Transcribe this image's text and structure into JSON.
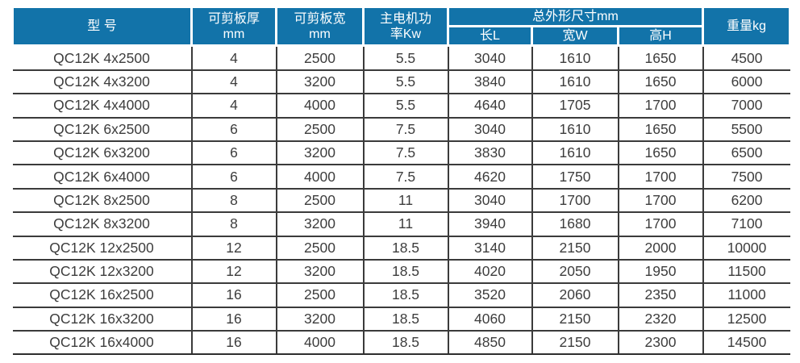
{
  "colors": {
    "header_background": "#1273a9",
    "header_text": "#ffffff",
    "body_text": "#3d3d3d",
    "grid_line": "#3b3b3b",
    "page_background": "#ffffff"
  },
  "chart_data": {
    "type": "table",
    "title": "",
    "legend": "none",
    "grid": "on",
    "header": {
      "model": "型 号",
      "cut_thickness_line1": "可剪板厚",
      "cut_thickness_line2": "mm",
      "cut_width_line1": "可剪板宽",
      "cut_width_line2": "mm",
      "motor_power_line1": "主电机功",
      "motor_power_line2": "率Kw",
      "dims_group": "总外形尺寸mm",
      "dim_length": "长L",
      "dim_width": "宽W",
      "dim_height": "高H",
      "weight": "重量kg"
    },
    "columns": [
      "型 号",
      "可剪板厚 mm",
      "可剪板宽 mm",
      "主电机功率Kw",
      "总外形尺寸mm 长L",
      "总外形尺寸mm 宽W",
      "总外形尺寸mm 高H",
      "重量kg"
    ],
    "rows": [
      [
        "QC12K 4x2500",
        "4",
        "2500",
        "5.5",
        "3040",
        "1610",
        "1650",
        "4500"
      ],
      [
        "QC12K 4x3200",
        "4",
        "3200",
        "5.5",
        "3840",
        "1610",
        "1650",
        "6000"
      ],
      [
        "QC12K 4x4000",
        "4",
        "4000",
        "5.5",
        "4640",
        "1705",
        "1700",
        "7000"
      ],
      [
        "QC12K 6x2500",
        "6",
        "2500",
        "7.5",
        "3040",
        "1610",
        "1650",
        "5500"
      ],
      [
        "QC12K 6x3200",
        "6",
        "3200",
        "7.5",
        "3830",
        "1610",
        "1650",
        "6500"
      ],
      [
        "QC12K 6x4000",
        "6",
        "4000",
        "7.5",
        "4620",
        "1750",
        "1700",
        "7500"
      ],
      [
        "QC12K 8x2500",
        "8",
        "2500",
        "11",
        "3040",
        "1700",
        "1700",
        "6200"
      ],
      [
        "QC12K 8x3200",
        "8",
        "3200",
        "11",
        "3940",
        "1680",
        "1700",
        "7100"
      ],
      [
        "QC12K 12x2500",
        "12",
        "2500",
        "18.5",
        "3140",
        "2150",
        "2000",
        "10000"
      ],
      [
        "QC12K 12x3200",
        "12",
        "3200",
        "18.5",
        "4020",
        "2050",
        "1950",
        "11500"
      ],
      [
        "QC12K 16x2500",
        "16",
        "2500",
        "18.5",
        "3520",
        "2060",
        "2350",
        "11000"
      ],
      [
        "QC12K 16x3200",
        "16",
        "3200",
        "18.5",
        "4060",
        "2150",
        "2320",
        "12500"
      ],
      [
        "QC12K 16x4000",
        "16",
        "4000",
        "18.5",
        "4850",
        "2150",
        "2300",
        "14500"
      ]
    ]
  }
}
